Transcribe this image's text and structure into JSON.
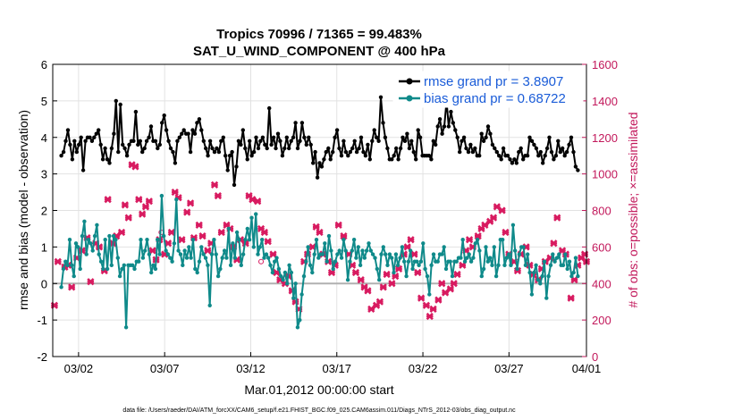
{
  "chart_data": {
    "type": "line",
    "title": "Tropics 70996 / 71365 = 99.483%",
    "subtitle": "SAT_U_WIND_COMPONENT @ 400 hPa",
    "xlabel": "Mar.01,2012 00:00:00 start",
    "ylabel_left": "rmse and bias (model - observation)",
    "ylabel_right": "# of obs: o=possible; ×=assimilated",
    "footer": "data file: /Users/raeder/DAI/ATM_forcXX/CAM6_setup/f.e21.FHIST_BGC.f09_025.CAM6assim.011/Diags_NTrS_2012-03/obs_diag_output.nc",
    "xlim": [
      0.5,
      31.5
    ],
    "ylim_left": [
      -2,
      6
    ],
    "ylim_right": [
      0,
      1600
    ],
    "x_ticks": [
      2,
      7,
      12,
      17,
      22,
      27,
      32
    ],
    "x_tick_labels": [
      "03/02",
      "03/07",
      "03/12",
      "03/17",
      "03/22",
      "03/27",
      "04/01"
    ],
    "y_left_ticks": [
      "-2",
      "-1",
      "0",
      "1",
      "2",
      "3",
      "4",
      "5",
      "6"
    ],
    "y_right_ticks": [
      "0",
      "200",
      "400",
      "600",
      "800",
      "1000",
      "1200",
      "1400",
      "1600"
    ],
    "colors": {
      "rmse": "#000000",
      "bias": "#0f8a8a",
      "obs": "#d81b60",
      "grid": "#e2e2e2",
      "zero_line": "#b0b0b0",
      "right_axis": "#c2185b"
    },
    "series": [
      {
        "name": "rmse grand pr = 3.8907",
        "axis": "left",
        "values": [
          3.5,
          3.6,
          3.9,
          4.2,
          3.8,
          3.4,
          3.9,
          3.6,
          3.8,
          4.0,
          3.1,
          3.9,
          4.0,
          4.0,
          3.9,
          4.0,
          4.1,
          4.2,
          3.8,
          3.4,
          3.7,
          3.4,
          3.3,
          3.7,
          4.1,
          5.0,
          3.6,
          4.9,
          3.8,
          3.7,
          3.5,
          3.8,
          3.9,
          3.9,
          4.7,
          3.8,
          3.9,
          3.6,
          3.7,
          3.9,
          4.0,
          4.3,
          3.9,
          3.9,
          3.7,
          3.8,
          4.4,
          4.6,
          4.2,
          3.9,
          3.7,
          3.6,
          3.3,
          3.9,
          4.0,
          4.1,
          4.2,
          4.1,
          4.1,
          3.6,
          4.2,
          4.1,
          4.4,
          4.5,
          4.2,
          3.9,
          3.7,
          3.5,
          3.9,
          3.7,
          3.6,
          3.7,
          3.6,
          3.9,
          4.0,
          3.5,
          3.1,
          3.5,
          3.6,
          2.7,
          3.2,
          3.9,
          3.8,
          4.2,
          3.7,
          3.4,
          3.9,
          3.5,
          3.6,
          4.0,
          3.7,
          3.9,
          4.0,
          3.8,
          3.7,
          4.8,
          3.8,
          4.0,
          3.7,
          4.1,
          3.9,
          3.5,
          3.7,
          4.0,
          3.7,
          3.9,
          4.0,
          4.4,
          3.7,
          3.9,
          4.4,
          4.0,
          3.8,
          4.0,
          3.8,
          3.3,
          3.6,
          2.9,
          3.3,
          3.2,
          3.4,
          3.6,
          3.7,
          3.4,
          3.6,
          4.0,
          4.2,
          3.7,
          3.5,
          3.9,
          3.6,
          3.5,
          3.6,
          3.7,
          3.9,
          3.6,
          3.7,
          4.0,
          3.6,
          3.5,
          3.8,
          3.4,
          3.9,
          4.2,
          4.0,
          3.9,
          5.1,
          4.4,
          4.0,
          3.7,
          3.4,
          3.4,
          3.5,
          3.7,
          3.4,
          3.7,
          4.0,
          3.9,
          4.1,
          3.7,
          3.9,
          3.6,
          3.4,
          4.2,
          4.0,
          3.5,
          3.5,
          3.5,
          3.5,
          3.4,
          3.9,
          3.8,
          4.3,
          4.5,
          4.1,
          4.3,
          5.0,
          4.3,
          4.7,
          4.4,
          4.2,
          4.0,
          3.6,
          3.9,
          4.0,
          3.7,
          3.6,
          3.8,
          3.6,
          3.7,
          3.5,
          3.5,
          4.1,
          3.9,
          4.0,
          4.3,
          4.1,
          3.8,
          3.7,
          3.6,
          3.5,
          3.4,
          3.7,
          3.5,
          3.5,
          3.4,
          3.3,
          3.4,
          3.3,
          3.6,
          3.7,
          3.4,
          3.5,
          3.5,
          4.0,
          3.9,
          3.8,
          3.7,
          3.5,
          3.6,
          3.3,
          3.5,
          3.7,
          4.0,
          3.6,
          3.4,
          3.5,
          3.9,
          3.6,
          3.7,
          3.5,
          3.6,
          3.8,
          4.0,
          3.6,
          3.2,
          3.1
        ]
      },
      {
        "name": "bias grand pr = 0.68722",
        "axis": "left",
        "values": [
          -0.1,
          0.4,
          0.6,
          0.5,
          1.2,
          0.5,
          0.2,
          1.1,
          1.0,
          0.4,
          1.3,
          1.7,
          0.8,
          1.2,
          1.1,
          0.9,
          1.3,
          1.6,
          0.8,
          0.6,
          0.4,
          1.2,
          0.4,
          1.3,
          0.5,
          1.3,
          1.2,
          0.7,
          0.2,
          0.4,
          0.5,
          -1.2,
          0.5,
          0.5,
          0.5,
          0.4,
          0.6,
          0.6,
          1.2,
          0.7,
          0.9,
          1.2,
          0.8,
          0.3,
          0.5,
          0.4,
          1.2,
          0.8,
          2.4,
          1.3,
          0.9,
          0.8,
          0.7,
          0.6,
          1.1,
          2.3,
          0.9,
          0.8,
          0.5,
          0.9,
          0.7,
          1.0,
          0.7,
          1.2,
          0.4,
          0.3,
          0.6,
          1.0,
          0.8,
          0.7,
          0.5,
          -0.6,
          0.8,
          1.2,
          0.8,
          0.2,
          0.4,
          0.7,
          0.9,
          0.7,
          1.5,
          0.5,
          1.1,
          0.7,
          1.4,
          1.2,
          0.5,
          0.8,
          1.2,
          1.5,
          1.2,
          1.8,
          1.0,
          1.9,
          0.8,
          1.0,
          1.2,
          0.7,
          0.8,
          0.7,
          0.5,
          0.3,
          0.6,
          0.7,
          0.4,
          0.2,
          0.1,
          0.3,
          0.0,
          0.5,
          0.3,
          -0.4,
          0.0,
          -1.2,
          -1.0,
          -0.3,
          0.2,
          0.6,
          1.0,
          0.5,
          0.3,
          0.8,
          1.2,
          0.7,
          0.8,
          0.8,
          1.1,
          0.6,
          1.3,
          0.9,
          0.4,
          0.6,
          0.8,
          0.9,
          0.7,
          1.2,
          0.9,
          0.1,
          0.6,
          0.9,
          1.2,
          0.7,
          1.0,
          0.5,
          0.9,
          0.7,
          0.9,
          1.1,
          0.9,
          0.8,
          0.7,
          0.4,
          0.1,
          0.8,
          1.0,
          0.8,
          0.5,
          0.8,
          0.7,
          0.3,
          0.8,
          0.5,
          0.7,
          1.0,
          0.6,
          0.2,
          0.6,
          0.9,
          0.4,
          0.6,
          0.6,
          0.5,
          0.6,
          1.1,
          0.4,
          0.2,
          -0.3,
          0.5,
          0.8,
          0.6,
          0.6,
          0.8,
          0.8,
          1.0,
          0.4,
          0.6,
          0.6,
          0.2,
          0.6,
          0.6,
          0.7,
          0.7,
          1.2,
          0.6,
          0.7,
          0.8,
          0.6,
          0.7,
          1.1,
          1.2,
          0.9,
          0.2,
          0.4,
          1.0,
          0.6,
          0.7,
          0.5,
          1.0,
          0.2,
          0.5,
          1.2,
          1.2,
          0.5,
          0.7,
          0.8,
          0.5,
          1.6,
          0.9,
          0.4,
          0.8,
          1.0,
          1.0,
          0.5,
          0.8,
          0.3,
          -0.3,
          0.3,
          0.5,
          0.1,
          0.0,
          0.2,
          0.6,
          -0.4,
          0.2,
          0.5,
          0.8,
          0.6,
          0.7,
          0.8,
          0.5,
          0.5,
          0.8,
          0.4,
          0.6,
          0.2,
          0.3,
          0.7,
          0.2
        ]
      }
    ],
    "obs_assimilated": {
      "axis": "right",
      "points": [
        [
          0.6,
          280
        ],
        [
          0.8,
          520
        ],
        [
          1.2,
          490
        ],
        [
          1.4,
          500
        ],
        [
          1.6,
          380
        ],
        [
          1.9,
          540
        ],
        [
          2.2,
          580
        ],
        [
          2.5,
          650
        ],
        [
          2.7,
          410
        ],
        [
          3.0,
          620
        ],
        [
          3.2,
          600
        ],
        [
          3.5,
          470
        ],
        [
          3.7,
          860
        ],
        [
          4.0,
          620
        ],
        [
          4.2,
          660
        ],
        [
          4.5,
          680
        ],
        [
          4.7,
          830
        ],
        [
          4.9,
          760
        ],
        [
          5.1,
          1050
        ],
        [
          5.3,
          1040
        ],
        [
          5.5,
          860
        ],
        [
          5.7,
          780
        ],
        [
          5.9,
          820
        ],
        [
          6.1,
          850
        ],
        [
          6.3,
          580
        ],
        [
          6.5,
          530
        ],
        [
          6.7,
          640
        ],
        [
          7.0,
          560
        ],
        [
          7.2,
          620
        ],
        [
          7.4,
          680
        ],
        [
          7.6,
          900
        ],
        [
          7.8,
          870
        ],
        [
          8.0,
          640
        ],
        [
          8.3,
          790
        ],
        [
          8.5,
          840
        ],
        [
          8.7,
          650
        ],
        [
          9.0,
          720
        ],
        [
          9.2,
          660
        ],
        [
          9.5,
          580
        ],
        [
          9.7,
          620
        ],
        [
          9.9,
          940
        ],
        [
          10.1,
          880
        ],
        [
          10.3,
          680
        ],
        [
          10.6,
          720
        ],
        [
          10.8,
          700
        ],
        [
          11.0,
          600
        ],
        [
          11.2,
          530
        ],
        [
          11.4,
          640
        ],
        [
          11.7,
          620
        ],
        [
          11.9,
          880
        ],
        [
          12.1,
          860
        ],
        [
          12.4,
          850
        ],
        [
          12.6,
          700
        ],
        [
          12.8,
          680
        ],
        [
          13.0,
          630
        ],
        [
          13.3,
          560
        ],
        [
          13.5,
          460
        ],
        [
          13.7,
          420
        ],
        [
          14.0,
          400
        ],
        [
          14.2,
          440
        ],
        [
          14.4,
          360
        ],
        [
          14.6,
          300
        ],
        [
          14.8,
          260
        ],
        [
          15.1,
          520
        ],
        [
          15.3,
          560
        ],
        [
          15.6,
          600
        ],
        [
          15.8,
          710
        ],
        [
          16.0,
          680
        ],
        [
          16.2,
          560
        ],
        [
          16.5,
          520
        ],
        [
          16.7,
          460
        ],
        [
          16.9,
          500
        ],
        [
          17.1,
          720
        ],
        [
          17.4,
          660
        ],
        [
          17.7,
          560
        ],
        [
          17.9,
          500
        ],
        [
          18.1,
          460
        ],
        [
          18.4,
          420
        ],
        [
          18.6,
          380
        ],
        [
          18.8,
          360
        ],
        [
          19.0,
          260
        ],
        [
          19.3,
          280
        ],
        [
          19.5,
          300
        ],
        [
          19.7,
          380
        ],
        [
          19.9,
          450
        ],
        [
          20.2,
          400
        ],
        [
          20.4,
          440
        ],
        [
          20.6,
          480
        ],
        [
          20.9,
          560
        ],
        [
          21.1,
          600
        ],
        [
          21.3,
          640
        ],
        [
          21.5,
          560
        ],
        [
          21.7,
          460
        ],
        [
          21.9,
          320
        ],
        [
          22.2,
          280
        ],
        [
          22.4,
          220
        ],
        [
          22.6,
          260
        ],
        [
          22.9,
          310
        ],
        [
          23.1,
          400
        ],
        [
          23.3,
          350
        ],
        [
          23.6,
          370
        ],
        [
          23.8,
          400
        ],
        [
          24.0,
          450
        ],
        [
          24.3,
          500
        ],
        [
          24.5,
          580
        ],
        [
          24.7,
          640
        ],
        [
          24.9,
          600
        ],
        [
          25.2,
          660
        ],
        [
          25.4,
          700
        ],
        [
          25.6,
          720
        ],
        [
          25.9,
          740
        ],
        [
          26.1,
          760
        ],
        [
          26.3,
          820
        ],
        [
          26.6,
          800
        ],
        [
          26.8,
          680
        ],
        [
          27.0,
          560
        ],
        [
          27.3,
          520
        ],
        [
          27.5,
          470
        ],
        [
          27.7,
          560
        ],
        [
          28.0,
          600
        ],
        [
          28.2,
          500
        ],
        [
          28.4,
          450
        ],
        [
          28.7,
          420
        ],
        [
          28.9,
          480
        ],
        [
          29.1,
          520
        ],
        [
          29.4,
          540
        ],
        [
          29.6,
          620
        ],
        [
          29.8,
          760
        ],
        [
          30.1,
          580
        ],
        [
          30.3,
          560
        ],
        [
          30.6,
          320
        ],
        [
          30.8,
          420
        ],
        [
          31.0,
          500
        ],
        [
          31.2,
          540
        ],
        [
          31.4,
          560
        ],
        [
          31.5,
          520
        ]
      ]
    },
    "obs_possible": {
      "axis": "right",
      "points": [
        [
          6.8,
          680
        ],
        [
          12.6,
          520
        ]
      ]
    },
    "legend": {
      "placement": "top-right",
      "entries": [
        "rmse grand pr = 3.8907",
        "bias grand pr = 0.68722"
      ]
    }
  }
}
